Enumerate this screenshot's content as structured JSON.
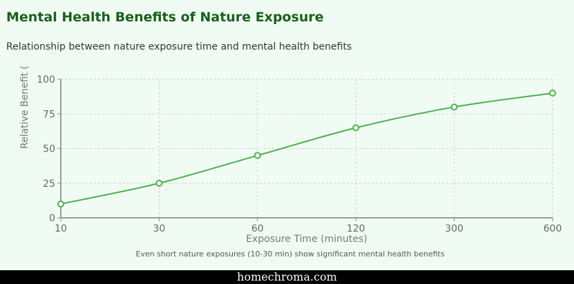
{
  "title": "Mental Health Benefits of Nature Exposure",
  "subtitle": "Relationship between nature exposure time and mental health benefits",
  "footer": "homechroma.com",
  "chart_data": {
    "type": "line",
    "xlabel": "Exposure Time (minutes)",
    "ylabel": "Relative Benefit (%)",
    "categories": [
      "10",
      "30",
      "60",
      "120",
      "300",
      "600"
    ],
    "values": [
      10,
      25,
      45,
      65,
      80,
      90
    ],
    "yticks": [
      0,
      25,
      50,
      75,
      100
    ],
    "ylim": [
      0,
      100
    ],
    "grid": true,
    "line_color": "#4caf50",
    "annotation": "Even short nature exposures (10-30 min) show significant mental health benefits"
  }
}
